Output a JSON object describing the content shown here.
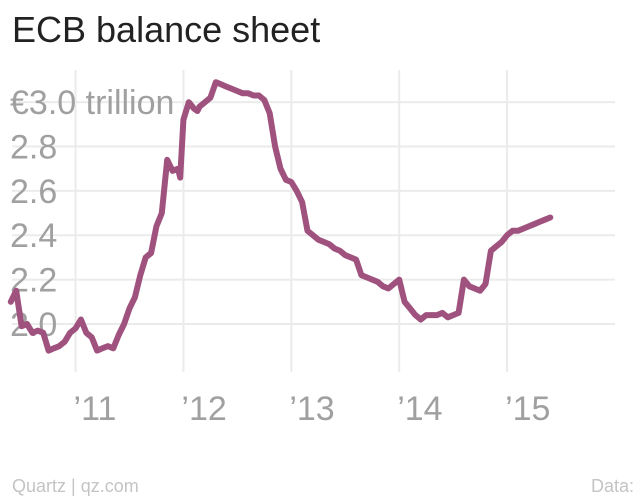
{
  "title": "ECB balance sheet",
  "footer": {
    "source": "Quartz | qz.com",
    "data_label": "Data:"
  },
  "colors": {
    "line": "#a0527f",
    "grid": "#ebebeb",
    "tick": "#a0a0a0",
    "title": "#222222"
  },
  "chart_data": {
    "type": "line",
    "title": "ECB balance sheet",
    "ylabel": "",
    "xlabel": "",
    "xlim": [
      2010.3,
      2016.0
    ],
    "ylim": [
      1.86,
      3.1
    ],
    "grid": true,
    "y_ticks": [
      {
        "value": 3.0,
        "label": "€3.0 trillion"
      },
      {
        "value": 2.8,
        "label": "2.8"
      },
      {
        "value": 2.6,
        "label": "2.6"
      },
      {
        "value": 2.4,
        "label": "2.4"
      },
      {
        "value": 2.2,
        "label": "2.2"
      },
      {
        "value": 2.0,
        "label": "2.0"
      }
    ],
    "x_ticks": [
      {
        "value": 2011,
        "label": "’11"
      },
      {
        "value": 2012,
        "label": "’12"
      },
      {
        "value": 2013,
        "label": "’13"
      },
      {
        "value": 2014,
        "label": "’14"
      },
      {
        "value": 2015,
        "label": "’15"
      }
    ],
    "series": [
      {
        "x": [
          2010.4,
          2010.45,
          2010.5,
          2010.55,
          2010.6,
          2010.65,
          2010.7,
          2010.75,
          2010.8,
          2010.85,
          2010.9,
          2010.95,
          2011.0,
          2011.05,
          2011.1,
          2011.15,
          2011.2,
          2011.25,
          2011.3,
          2011.35,
          2011.4,
          2011.45,
          2011.5,
          2011.55,
          2011.6,
          2011.65,
          2011.7,
          2011.75,
          2011.8,
          2011.85,
          2011.9,
          2011.95,
          2011.97,
          2012.0,
          2012.05,
          2012.1,
          2012.13,
          2012.15,
          2012.2,
          2012.25,
          2012.3,
          2012.35,
          2012.4,
          2012.45,
          2012.5,
          2012.55,
          2012.6,
          2012.65,
          2012.7,
          2012.75,
          2012.8,
          2012.85,
          2012.9,
          2012.95,
          2013.0,
          2013.05,
          2013.1,
          2013.15,
          2013.2,
          2013.25,
          2013.3,
          2013.35,
          2013.4,
          2013.45,
          2013.5,
          2013.55,
          2013.6,
          2013.65,
          2013.7,
          2013.75,
          2013.8,
          2013.85,
          2013.9,
          2013.95,
          2014.0,
          2014.05,
          2014.1,
          2014.15,
          2014.2,
          2014.25,
          2014.3,
          2014.35,
          2014.4,
          2014.45,
          2014.5,
          2014.55,
          2014.6,
          2014.65,
          2014.7,
          2014.75,
          2014.8,
          2014.85,
          2014.9,
          2014.95,
          2015.0,
          2015.05,
          2015.1,
          2015.15,
          2015.2,
          2015.25,
          2015.3,
          2015.35,
          2015.4
        ],
        "y": [
          2.1,
          2.15,
          1.99,
          2.0,
          1.96,
          1.97,
          1.96,
          1.88,
          1.89,
          1.9,
          1.92,
          1.96,
          1.98,
          2.02,
          1.96,
          1.94,
          1.88,
          1.89,
          1.9,
          1.89,
          1.95,
          2.0,
          2.07,
          2.12,
          2.22,
          2.3,
          2.32,
          2.44,
          2.5,
          2.74,
          2.69,
          2.7,
          2.66,
          2.92,
          3.0,
          2.97,
          2.96,
          2.98,
          3.0,
          3.02,
          3.09,
          3.08,
          3.07,
          3.06,
          3.05,
          3.04,
          3.04,
          3.03,
          3.03,
          3.01,
          2.95,
          2.8,
          2.7,
          2.65,
          2.64,
          2.6,
          2.55,
          2.42,
          2.4,
          2.38,
          2.37,
          2.36,
          2.34,
          2.33,
          2.31,
          2.3,
          2.29,
          2.22,
          2.21,
          2.2,
          2.19,
          2.17,
          2.16,
          2.18,
          2.2,
          2.1,
          2.07,
          2.04,
          2.02,
          2.04,
          2.04,
          2.04,
          2.05,
          2.03,
          2.04,
          2.05,
          2.2,
          2.17,
          2.16,
          2.15,
          2.18,
          2.33,
          2.35,
          2.37,
          2.4,
          2.42,
          2.42,
          2.43,
          2.44,
          2.45,
          2.46,
          2.47,
          2.48
        ]
      }
    ]
  }
}
